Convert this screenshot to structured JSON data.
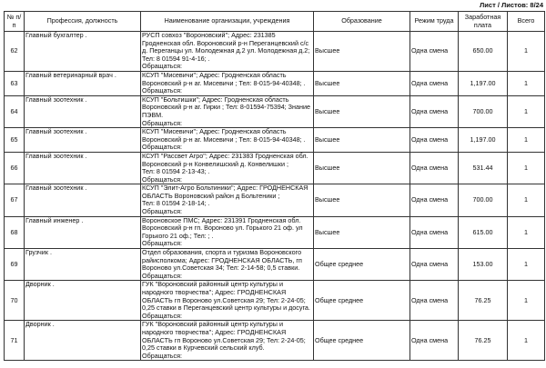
{
  "sheet_label": "Лист / Листов: 8/24",
  "headers": [
    "№ п/п",
    "Профессия, должность",
    "Наименование организации, учреждения",
    "Образование",
    "Режим труда",
    "Заработная плата",
    "Всего"
  ],
  "rows": [
    {
      "n": "62",
      "job": "Главный бухгалтер .",
      "org": "РУСП совхоз \"Вороновский\"; Адрес: 231385 Гродненская обл. Вороновский р-н Переганцевский с/с д. Переганцы ул. Молодежная д.2 ул. Молодежная д.2;\nТел: 8 01594 91-4-16; .\nОбращаться:",
      "edu": "Высшее",
      "mode": "Одна смена",
      "salary": "650.00",
      "total": "1"
    },
    {
      "n": "63",
      "job": "Главный ветеринарный врач .",
      "org": "КСУП \"Мисевичи\"; Адрес: Гродненская область Вороновский р-н аг. Мисевичи ; Тел: 8-015-94-40348; .\nОбращаться:",
      "edu": "Высшее",
      "mode": "Одна смена",
      "salary": "1,197.00",
      "total": "1"
    },
    {
      "n": "64",
      "job": "Главный зоотехник .",
      "org": "КСУП \"Больтишки\"; Адрес: Гродненская область Вороновский р-н аг. Гирки ; Тел: 8-01594-75394; Знание ПЭВМ.\nОбращаться:",
      "edu": "Высшее",
      "mode": "Одна смена",
      "salary": "700.00",
      "total": "1"
    },
    {
      "n": "65",
      "job": "Главный зоотехник .",
      "org": "КСУП \"Мисевичи\"; Адрес: Гродненская область Вороновский р-н аг. Мисевичи ; Тел: 8-015-94-40348; .\nОбращаться:",
      "edu": "Высшее",
      "mode": "Одна смена",
      "salary": "1,197.00",
      "total": "1"
    },
    {
      "n": "66",
      "job": "Главный зоотехник .",
      "org": "КСУП \"Рассвет Агро\"; Адрес: 231383 Гродненская обл. Вороновский р-н Конвелишский д. Конвелишки ;\nТел: 8 01594 2-13-43; .\nОбращаться:",
      "edu": "Высшее",
      "mode": "Одна смена",
      "salary": "531.44",
      "total": "1"
    },
    {
      "n": "67",
      "job": "Главный зоотехник .",
      "org": "КСУП \"Элит-Агро Больтиники\"; Адрес: ГРОДНЕНСКАЯ ОБЛАСТЬ Вороновский район д Больтеники ;\nТел: 8 01594 2-18-14; .\nОбращаться:",
      "edu": "Высшее",
      "mode": "Одна смена",
      "salary": "700.00",
      "total": "1"
    },
    {
      "n": "68",
      "job": "Главный инженер .",
      "org": "Вороновское ПМС; Адрес: 231391 Гродненская обл. Вороновский р-н  гп. Вороново ул. Горького 21  оф. ул Горького 21 оф.; Тел: ; .\nОбращаться:",
      "edu": "Высшее",
      "mode": "Одна смена",
      "salary": "615.00",
      "total": "1"
    },
    {
      "n": "69",
      "job": "Грузчик .",
      "org": "Отдел образования, спорта и туризма Вороновского райисполкома; Адрес: ГРОДНЕНСКАЯ ОБЛАСТЬ, гп Вороново ул.Советская 34; Тел: 2-14-58; 0,5 ставки.\nОбращаться:",
      "edu": "Общее среднее",
      "mode": "Одна смена",
      "salary": "153.00",
      "total": "1"
    },
    {
      "n": "70",
      "job": "Дворник .",
      "org": "ГУК \"Вороновский районный центр культуры и народного творчества\"; Адрес: ГРОДНЕНСКАЯ ОБЛАСТЬ гп Вороново ул.Советская  29; Тел: 2-24-05; 0,25 ставки в Переганцевский центр культуры и досуга.\nОбращаться:",
      "edu": "Общее среднее",
      "mode": "Одна смена",
      "salary": "76.25",
      "total": "1"
    },
    {
      "n": "71",
      "job": "Дворник .",
      "org": "ГУК \"Вороновский районный центр культуры и народного творчества\"; Адрес: ГРОДНЕНСКАЯ ОБЛАСТЬ гп Вороново ул.Советская  29; Тел: 2-24-05; 0,25 ставки в Курчевский сельский клуб.\nОбращаться:",
      "edu": "Общее среднее",
      "mode": "Одна смена",
      "salary": "76.25",
      "total": "1"
    }
  ]
}
